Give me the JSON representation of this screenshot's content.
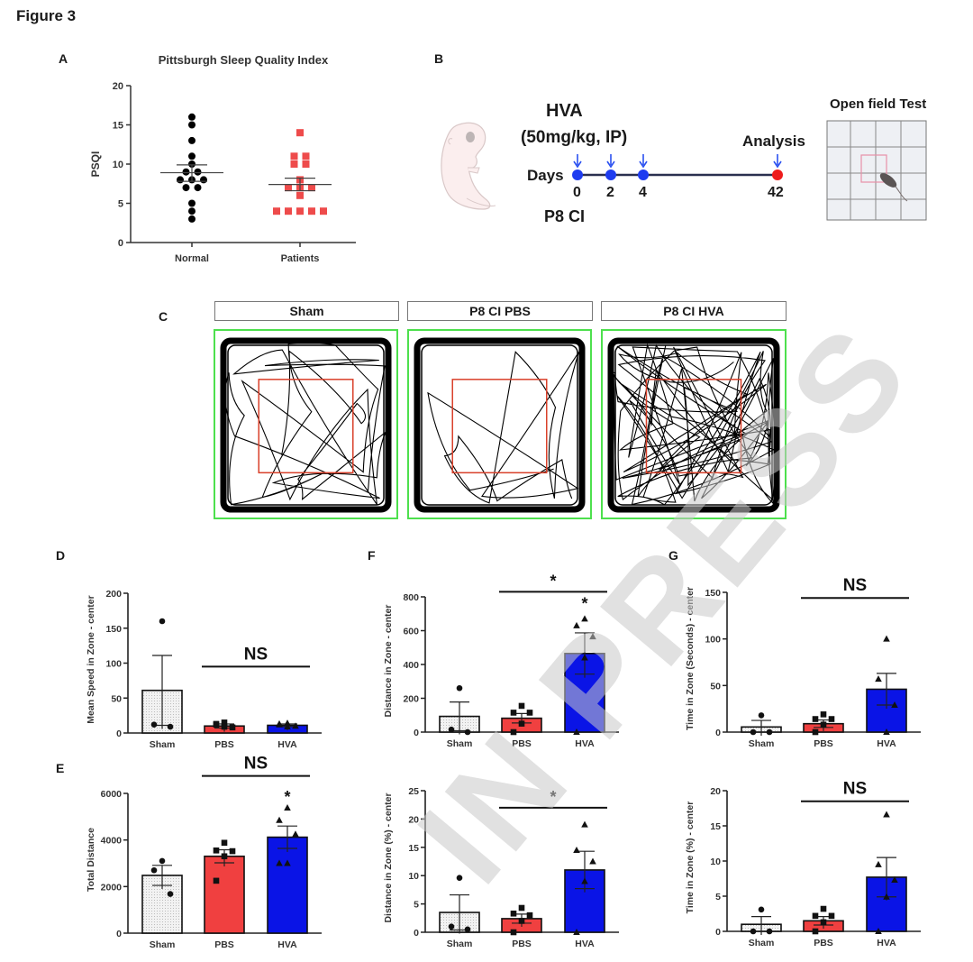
{
  "figure_title": "Figure 3",
  "watermark": "IN PRESS",
  "colors": {
    "sham": "#f2f2f2",
    "pbs": "#f04040",
    "hva": "#0a14e6",
    "patients": "#ee4b4b",
    "normal": "#000000",
    "arena_border": "#4de04d",
    "center_zone": "#d9402a",
    "timeline_blue": "#1e3cf0",
    "timeline_red": "#ee1c1c"
  },
  "panelB": {
    "letter": "B",
    "drug": "HVA",
    "dose": "(50mg/kg, IP)",
    "days_label": "Days",
    "days": [
      "0",
      "2",
      "4",
      "42"
    ],
    "start_label": "P8 CI",
    "analysis_label": "Analysis",
    "test_label": "Open field Test"
  },
  "panelC": {
    "letter": "C",
    "conditions": [
      "Sham",
      "P8  CI  PBS",
      "P8  CI  HVA"
    ]
  },
  "chart_data": [
    {
      "id": "A",
      "type": "scatter",
      "title": "Pittsburgh Sleep Quality Index",
      "xlabel": "",
      "ylabel": "PSQI",
      "ylim": [
        0,
        20
      ],
      "yticks": [
        0,
        5,
        10,
        15,
        20
      ],
      "categories": [
        "Normal",
        "Patients"
      ],
      "series": [
        {
          "name": "Normal",
          "marker": "circle",
          "values": [
            16,
            15,
            13,
            11,
            10,
            9,
            9,
            8,
            8,
            8,
            7,
            7,
            5,
            4,
            3
          ],
          "mean": 8.9,
          "sem_upper": 9.9,
          "sem_lower": 7.8
        },
        {
          "name": "Patients",
          "marker": "square",
          "values": [
            14,
            11,
            11,
            10,
            10,
            8,
            7,
            7,
            7,
            6,
            4,
            4,
            4,
            4,
            4
          ],
          "mean": 7.4,
          "sem_upper": 8.2,
          "sem_lower": 6.6
        }
      ]
    },
    {
      "id": "D",
      "type": "bar",
      "ylabel": "Mean Speed in Zone - center",
      "ylim": [
        0,
        200
      ],
      "yticks": [
        0,
        50,
        100,
        150,
        200
      ],
      "categories": [
        "Sham",
        "PBS",
        "HVA"
      ],
      "values": [
        61,
        10,
        11
      ],
      "sem": [
        50,
        3,
        2
      ],
      "points": [
        [
          160,
          12,
          9
        ],
        [
          15,
          12,
          8,
          9,
          13
        ],
        [
          14,
          12,
          10,
          9,
          13
        ]
      ],
      "annotations": [
        {
          "text": "NS",
          "span": [
            "PBS",
            "HVA"
          ],
          "y": 95
        }
      ]
    },
    {
      "id": "E",
      "type": "bar",
      "ylabel": "Total Distance",
      "ylim": [
        0,
        6000
      ],
      "yticks": [
        0,
        2000,
        4000,
        6000
      ],
      "categories": [
        "Sham",
        "PBS",
        "HVA"
      ],
      "values": [
        2480,
        3300,
        4120
      ],
      "sem": [
        430,
        280,
        480
      ],
      "points": [
        [
          3100,
          2700,
          1680
        ],
        [
          3880,
          3550,
          3520,
          3300,
          2250
        ],
        [
          5380,
          4850,
          4250,
          3000,
          3000
        ]
      ],
      "annotations": [
        {
          "text": "NS",
          "span": [
            "PBS",
            "HVA"
          ],
          "y": 6750
        },
        {
          "text": "*",
          "over": "HVA",
          "y": 5850
        }
      ]
    },
    {
      "id": "F",
      "type": "bar",
      "ylabel": "Distance in Zone - center",
      "ylim": [
        0,
        800
      ],
      "yticks": [
        0,
        200,
        400,
        600,
        800
      ],
      "categories": [
        "Sham",
        "PBS",
        "HVA"
      ],
      "values": [
        93,
        82,
        465
      ],
      "sem": [
        85,
        28,
        122
      ],
      "points": [
        [
          260,
          15,
          0
        ],
        [
          155,
          115,
          115,
          50,
          0
        ],
        [
          670,
          630,
          565,
          440,
          0
        ]
      ],
      "annotations": [
        {
          "text": "*",
          "span": [
            "PBS",
            "HVA"
          ],
          "y": 830
        },
        {
          "text": "*",
          "over": "HVA",
          "y": 760
        }
      ]
    },
    {
      "id": "F2",
      "type": "bar",
      "ylabel": "Distance in Zone (%) - center",
      "ylim": [
        0,
        25
      ],
      "yticks": [
        0,
        5,
        10,
        15,
        20,
        25
      ],
      "categories": [
        "Sham",
        "PBS",
        "HVA"
      ],
      "values": [
        3.5,
        2.4,
        11.0
      ],
      "sem": [
        3.1,
        0.8,
        3.3
      ],
      "points": [
        [
          9.6,
          1.0,
          0.5
        ],
        [
          4.3,
          3.3,
          3.0,
          2.0,
          0
        ],
        [
          19.0,
          14.5,
          12.5,
          9.0,
          0
        ]
      ],
      "annotations": [
        {
          "text": "*",
          "span": [
            "PBS",
            "HVA"
          ],
          "y": 22
        }
      ]
    },
    {
      "id": "G",
      "type": "bar",
      "ylabel": "Time in Zone (Seconds) - center",
      "ylim": [
        0,
        150
      ],
      "yticks": [
        0,
        50,
        100,
        150
      ],
      "categories": [
        "Sham",
        "PBS",
        "HVA"
      ],
      "values": [
        5.5,
        9,
        46
      ],
      "sem": [
        7,
        4,
        17
      ],
      "points": [
        [
          18,
          0,
          0
        ],
        [
          19,
          14,
          14,
          8,
          0
        ],
        [
          100,
          57,
          29,
          0
        ]
      ],
      "annotations": [
        {
          "text": "NS",
          "span": [
            "PBS",
            "HVA"
          ],
          "y": 144
        }
      ]
    },
    {
      "id": "G2",
      "type": "bar",
      "ylabel": "Time in Zone (%) - center",
      "ylim": [
        0,
        20
      ],
      "yticks": [
        0,
        5,
        10,
        15,
        20
      ],
      "categories": [
        "Sham",
        "PBS",
        "HVA"
      ],
      "values": [
        1.0,
        1.5,
        7.7
      ],
      "sem": [
        1.1,
        0.6,
        2.8
      ],
      "points": [
        [
          3.1,
          0,
          0
        ],
        [
          3.2,
          2.2,
          2.2,
          1.3,
          0
        ],
        [
          16.6,
          9.5,
          7.3,
          4.9,
          0
        ]
      ],
      "annotations": [
        {
          "text": "NS",
          "span": [
            "PBS",
            "HVA"
          ],
          "y": 18.5
        }
      ]
    }
  ],
  "panel_letters": {
    "A": "A",
    "D": "D",
    "E": "E",
    "F": "F",
    "G": "G"
  }
}
